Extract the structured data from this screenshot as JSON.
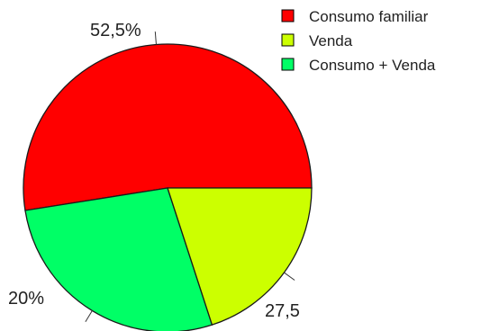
{
  "chart_data": {
    "type": "pie",
    "slices": [
      {
        "label": "Consumo familiar",
        "value": 52.5,
        "display": "52,5%",
        "color": "#ff0000"
      },
      {
        "label": "Consumo + Venda",
        "value": 27.5,
        "display": "27,5",
        "color": "#00ff66"
      },
      {
        "label": "Venda",
        "value": 20,
        "display": "20%",
        "color": "#ccff00"
      }
    ],
    "legend": {
      "placement": "top-right",
      "entries": [
        "Consumo familiar",
        "Venda",
        "Consumo + Venda"
      ],
      "colors": [
        "#ff0000",
        "#ccff00",
        "#00ff66"
      ]
    },
    "title": "",
    "border_color": "#1a1a1a"
  }
}
